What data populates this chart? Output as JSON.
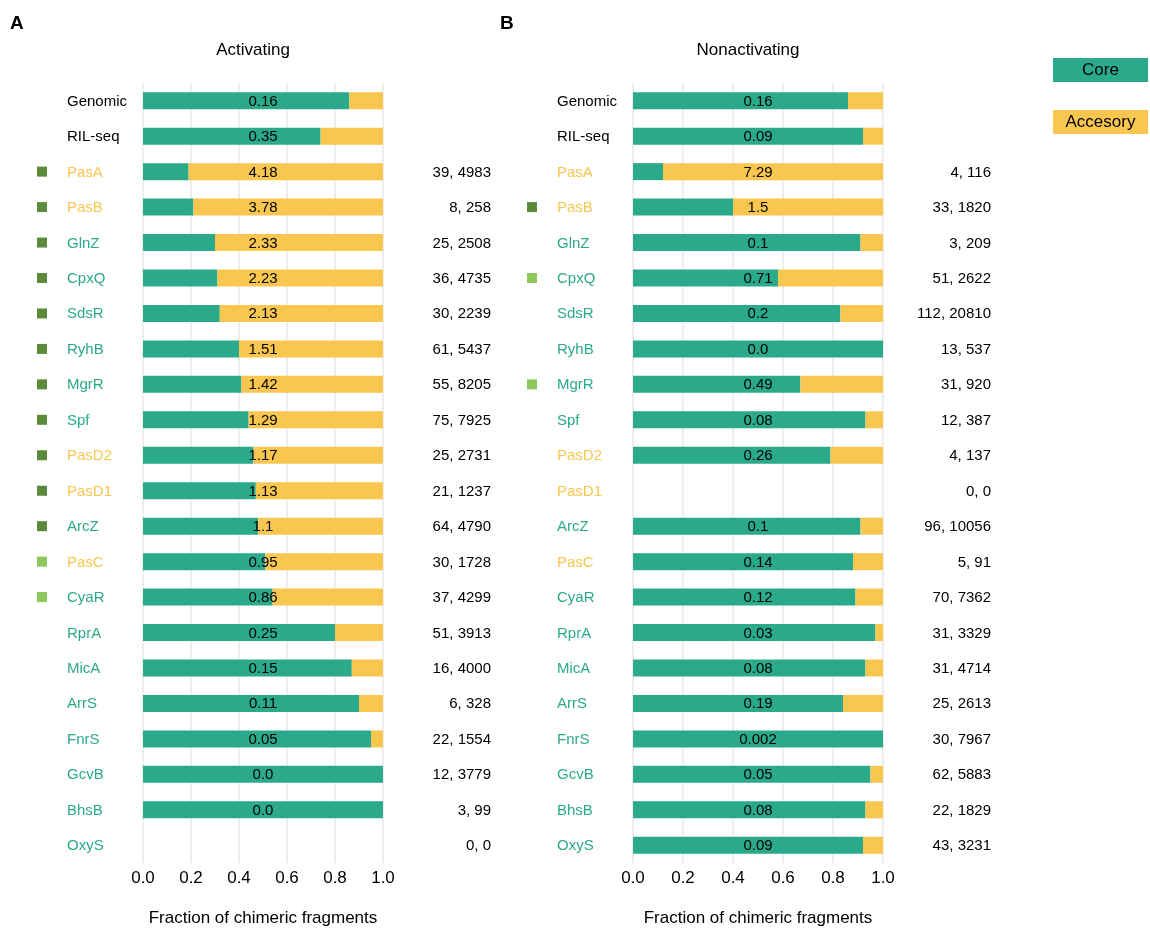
{
  "chart_data": [
    {
      "type": "bar",
      "orientation": "horizontal",
      "stacked": true,
      "title": "Activating",
      "xlabel": "Fraction of chimeric fragments",
      "grid": "x",
      "legend": false,
      "categories": [
        "Genomic",
        "RIL-seq",
        "PasA",
        "PasB",
        "GlnZ",
        "CpxQ",
        "SdsR",
        "RyhB",
        "MgrR",
        "Spf",
        "PasD2",
        "PasD1",
        "ArcZ",
        "PasC",
        "CyaR",
        "RprA",
        "MicA",
        "ArrS",
        "FnrS",
        "GcvB",
        "BhsB",
        "OxyS"
      ],
      "xlim": [
        0,
        1
      ],
      "xticks": [
        {
          "value": 0,
          "label": "0.0"
        },
        {
          "value": 0.2,
          "label": "0.2"
        },
        {
          "value": 0.4,
          "label": "0.4"
        },
        {
          "value": 0.6,
          "label": "0.6"
        },
        {
          "value": 0.8,
          "label": "0.8"
        },
        {
          "value": 1,
          "label": "1.0"
        }
      ],
      "series": [
        {
          "color": "#2aaa8a",
          "values": [
            0.86,
            0.74,
            0.19,
            0.21,
            0.3,
            0.31,
            0.32,
            0.4,
            0.41,
            0.44,
            0.46,
            0.47,
            0.48,
            0.51,
            0.54,
            0.8,
            0.87,
            0.9,
            0.95,
            1.0,
            1.0,
            null
          ]
        },
        {
          "color": "#f9c650",
          "values": [
            0.14,
            0.26,
            0.81,
            0.79,
            0.7,
            0.69,
            0.68,
            0.6,
            0.59,
            0.56,
            0.54,
            0.53,
            0.52,
            0.49,
            0.46,
            0.2,
            0.13,
            0.1,
            0.05,
            0,
            0,
            null
          ]
        }
      ],
      "annotations": [
        "A",
        "0.16",
        "0.35",
        "4.18",
        "3.78",
        "2.33",
        "2.23",
        "2.13",
        "1.51",
        "1.42",
        "1.29",
        "1.17",
        "1.13",
        "1.1",
        "0.95",
        "0.86",
        "0.25",
        "0.15",
        "0.11",
        "0.05",
        "0.0",
        "0.0",
        "39, 4983",
        "8, 258",
        "25, 2508",
        "36, 4735",
        "30, 2239",
        "61, 5437",
        "55, 8205",
        "75, 7925",
        "25, 2731",
        "21, 1237",
        "64, 4790",
        "30, 1728",
        "37, 4299",
        "51, 3913",
        "16, 4000",
        "6, 328",
        "22, 1554",
        "12, 3779",
        "3, 99",
        "0, 0"
      ]
    },
    {
      "type": "bar",
      "orientation": "horizontal",
      "stacked": true,
      "title": "Nonactivating",
      "xlabel": "Fraction of chimeric fragments",
      "grid": "x",
      "legend": "top right",
      "categories": [
        "Genomic",
        "RIL-seq",
        "PasA",
        "PasB",
        "GlnZ",
        "CpxQ",
        "SdsR",
        "RyhB",
        "MgrR",
        "Spf",
        "PasD2",
        "PasD1",
        "ArcZ",
        "PasC",
        "CyaR",
        "RprA",
        "MicA",
        "ArrS",
        "FnrS",
        "GcvB",
        "BhsB",
        "OxyS"
      ],
      "xlim": [
        0,
        1
      ],
      "xticks": [
        {
          "value": 0,
          "label": "0.0"
        },
        {
          "value": 0.2,
          "label": "0.2"
        },
        {
          "value": 0.4,
          "label": "0.4"
        },
        {
          "value": 0.6,
          "label": "0.6"
        },
        {
          "value": 0.8,
          "label": "0.8"
        },
        {
          "value": 1,
          "label": "1.0"
        }
      ],
      "series": [
        {
          "name": "Core",
          "color": "#2aaa8a",
          "values": [
            0.86,
            0.92,
            0.12,
            0.4,
            0.91,
            0.58,
            0.83,
            1.0,
            0.67,
            0.93,
            0.79,
            null,
            0.91,
            0.88,
            0.89,
            0.97,
            0.93,
            0.84,
            1.0,
            0.95,
            0.93,
            0.92
          ]
        },
        {
          "name": "Accesory",
          "color": "#f9c650",
          "values": [
            0.14,
            0.08,
            0.88,
            0.6,
            0.09,
            0.42,
            0.17,
            0,
            0.33,
            0.07,
            0.21,
            null,
            0.09,
            0.12,
            0.11,
            0.03,
            0.07,
            0.16,
            0,
            0.05,
            0.07,
            0.08
          ]
        }
      ],
      "annotations": [
        "B",
        "0.16",
        "0.09",
        "7.29",
        "1.5",
        "0.1",
        "0.71",
        "0.2",
        "0.0",
        "0.49",
        "0.08",
        "0.26",
        "0.1",
        "0.14",
        "0.12",
        "0.03",
        "0.08",
        "0.19",
        "0.002",
        "0.05",
        "0.08",
        "0.09",
        "4, 116",
        "33, 1820",
        "3, 209",
        "51, 2622",
        "112, 20810",
        "13, 537",
        "31, 920",
        "12, 387",
        "4, 137",
        "0, 0",
        "96, 10056",
        "5, 91",
        "70, 7362",
        "31, 3329",
        "31, 4714",
        "25, 2613",
        "30, 7967",
        "62, 5883",
        "22, 1829",
        "43, 3231"
      ]
    }
  ]
}
